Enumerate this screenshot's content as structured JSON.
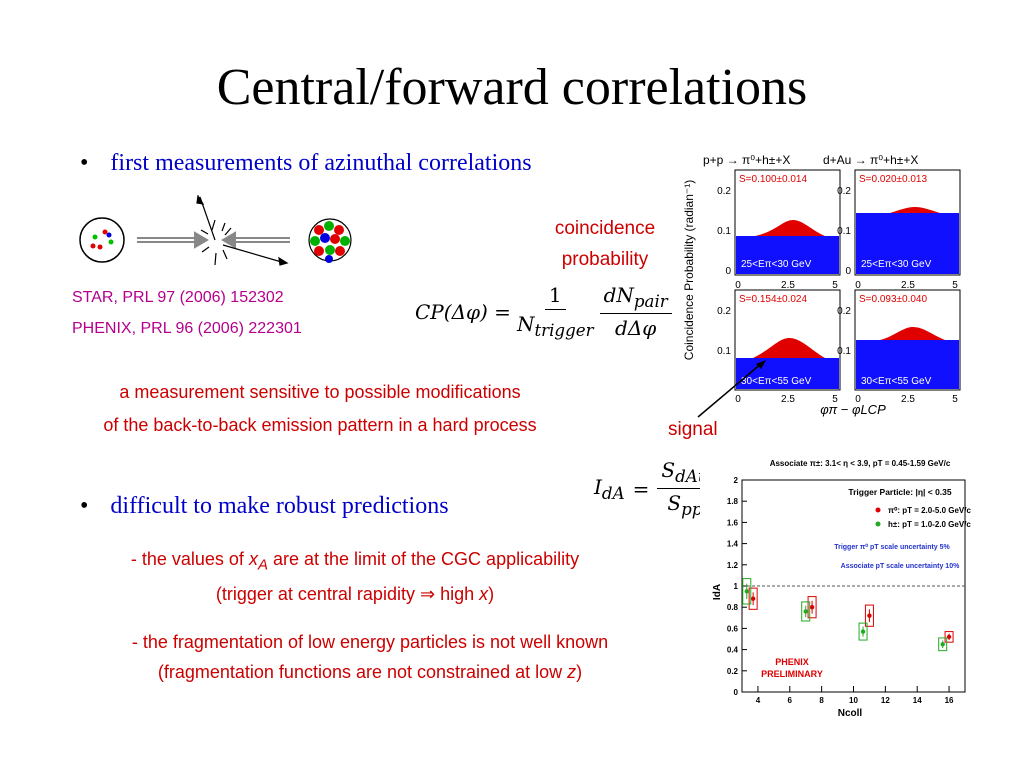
{
  "slide": {
    "title": "Central/forward correlations",
    "bullet1": "first measurements of azinuthal correlations",
    "bullet2": "difficult to make robust predictions",
    "ref1": "STAR, PRL 97 (2006) 152302",
    "ref2": "PHENIX, PRL 96 (2006) 222301",
    "coincidence_1": "coincidence",
    "coincidence_2": "probability",
    "sensitive_1": "a measurement sensitive to possible modifications",
    "sensitive_2": "of the back-to-back emission pattern in a hard process",
    "signal": "signal",
    "cgc_1a": "- the values of ",
    "cgc_1var": "x",
    "cgc_1sub": "A",
    "cgc_1b": " are at the limit of the CGC applicability",
    "cgc_2a": "(trigger at central rapidity ",
    "cgc_2arrow": "⇒",
    "cgc_2b": " high ",
    "cgc_2var": "x",
    "cgc_2c": ")",
    "frag_1": "- the fragmentation of low energy particles is not well known",
    "frag_2a": "(fragmentation functions are not constrained at low ",
    "frag_2var": "z",
    "frag_2c": ")",
    "colors": {
      "bullet_blue": "#0000c8",
      "red_text": "#cc0000",
      "ref_magenta": "#b4008c"
    }
  },
  "eq_cp": {
    "lhs": "CP(Δφ) =",
    "num1": "1",
    "den1": "N",
    "den1sub": "trigger",
    "num2": "dN",
    "num2sub": "pair",
    "den2": "dΔφ"
  },
  "eq_ida": {
    "lhs": "I",
    "lhssub": "dA",
    "eq": "=",
    "num": "S",
    "numsub": "dAu",
    "den": "S",
    "densub": "pp"
  },
  "star_figure": {
    "ylabel": "Coincidence Probability (radian⁻¹)",
    "xlabel": "φπ − φLCP",
    "panels": [
      {
        "header": "p+p → π⁰+h±+X",
        "s_label": "S=0.100±0.014",
        "e_label": "25<Eπ<30 GeV"
      },
      {
        "header": "d+Au → π⁰+h±+X",
        "s_label": "S=0.020±0.013",
        "e_label": "25<Eπ<30 GeV"
      },
      {
        "header": "",
        "s_label": "S=0.154±0.024",
        "e_label": "30<Eπ<55 GeV"
      },
      {
        "header": "",
        "s_label": "S=0.093±0.040",
        "e_label": "30<Eπ<55 GeV"
      }
    ],
    "y_ticks": [
      "0.2",
      "0.1",
      "0"
    ],
    "x_ticks": [
      "0",
      "2.5",
      "5"
    ]
  },
  "chart_data": {
    "type": "scatter",
    "title": "Associate π±: 3.1< η < 3.9, pT = 0.45-1.59 GeV/c",
    "xlabel": "Ncoll",
    "ylabel": "IdA",
    "xlim": [
      3,
      17
    ],
    "ylim": [
      0,
      2
    ],
    "x_ticks": [
      4,
      6,
      8,
      10,
      12,
      14,
      16
    ],
    "y_ticks": [
      0,
      0.2,
      0.4,
      0.6,
      0.8,
      1,
      1.2,
      1.4,
      1.6,
      1.8,
      2
    ],
    "reference_line": 1,
    "legend": {
      "header": "Trigger Particle: |η| < 0.35",
      "note1": "Trigger π⁰ pT scale uncertainty 5%",
      "note2": "Associate pT scale uncertainty 10%"
    },
    "watermark": "PHENIX PRELIMINARY",
    "series": [
      {
        "name": "π⁰: pT = 2.0-5.0 GeV/c",
        "color": "#dd0000",
        "x": [
          3.7,
          7.4,
          11.0,
          16.0
        ],
        "y": [
          0.88,
          0.8,
          0.72,
          0.52
        ],
        "err": [
          0.1,
          0.1,
          0.1,
          0.05
        ]
      },
      {
        "name": "h±: pT = 1.0-2.0 GeV/c",
        "color": "#22aa22",
        "x": [
          3.3,
          7.0,
          10.6,
          15.6
        ],
        "y": [
          0.95,
          0.76,
          0.57,
          0.45
        ],
        "err": [
          0.12,
          0.09,
          0.08,
          0.06
        ]
      }
    ]
  }
}
